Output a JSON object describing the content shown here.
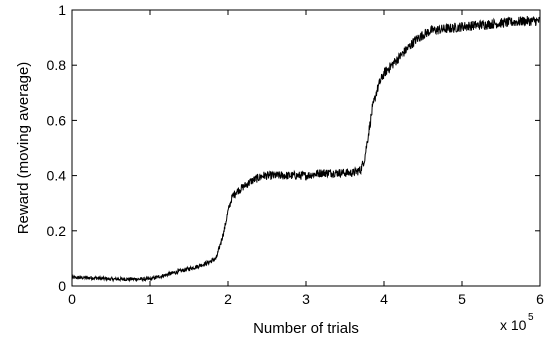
{
  "chart_data": {
    "type": "line",
    "title": "",
    "xlabel": "Number of trials",
    "ylabel": "Reward (moving average)",
    "x_multiplier_base": "x 10",
    "x_multiplier_exponent": "5",
    "xlim": [
      0,
      6
    ],
    "ylim": [
      0,
      1
    ],
    "x_ticks": [
      0,
      1,
      2,
      3,
      4,
      5,
      6
    ],
    "x_tick_labels": [
      "0",
      "1",
      "2",
      "3",
      "4",
      "5",
      "6"
    ],
    "y_ticks": [
      0,
      0.2,
      0.4,
      0.6,
      0.8,
      1
    ],
    "y_tick_labels": [
      "0",
      "0.2",
      "0.4",
      "0.6",
      "0.8",
      "1"
    ],
    "grid": false,
    "series": [
      {
        "color": "#000000",
        "x": [
          0,
          0.25,
          0.5,
          0.75,
          1.0,
          1.2,
          1.4,
          1.6,
          1.75,
          1.85,
          1.95,
          2.0,
          2.05,
          2.1,
          2.2,
          2.3,
          2.45,
          2.6,
          2.8,
          3.0,
          3.2,
          3.4,
          3.6,
          3.7,
          3.75,
          3.8,
          3.85,
          3.9,
          3.95,
          4.0,
          4.1,
          4.2,
          4.3,
          4.4,
          4.5,
          4.6,
          4.75,
          4.9,
          5.0,
          5.2,
          5.4,
          5.6,
          5.8,
          6.0
        ],
        "y": [
          0.03,
          0.03,
          0.025,
          0.025,
          0.025,
          0.04,
          0.055,
          0.07,
          0.085,
          0.1,
          0.2,
          0.27,
          0.32,
          0.34,
          0.36,
          0.38,
          0.4,
          0.4,
          0.4,
          0.4,
          0.41,
          0.41,
          0.41,
          0.42,
          0.46,
          0.55,
          0.64,
          0.7,
          0.74,
          0.77,
          0.8,
          0.83,
          0.86,
          0.89,
          0.91,
          0.925,
          0.93,
          0.935,
          0.94,
          0.945,
          0.95,
          0.955,
          0.96,
          0.96
        ]
      }
    ]
  }
}
